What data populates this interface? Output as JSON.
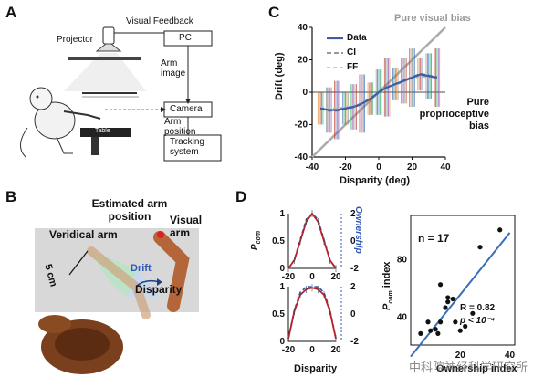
{
  "panels": {
    "a": "A",
    "b": "B",
    "c": "C",
    "d": "D"
  },
  "panel_a": {
    "visual_feedback": "Visual Feedback",
    "projector": "Projector",
    "pc": "PC",
    "arm_image": "Arm image",
    "camera": "Camera",
    "arm_position": "Arm position",
    "tracking_system": "Tracking system",
    "table": "Table"
  },
  "panel_b": {
    "estimated_arm_position": "Estimated arm position",
    "veridical_arm": "Veridical arm",
    "visual_arm": "Visual arm",
    "scale": "5 cm",
    "drift": "Drift",
    "disparity": "Disparity"
  },
  "chart_c": {
    "ylabel": "Drift (deg)",
    "xlabel": "Disparity (deg)",
    "legend": [
      "Data",
      "CI",
      "FF"
    ],
    "pure_visual_bias": "Pure visual bias",
    "pure_proprioceptive_bias": "Pure proprioceptive bias",
    "xticks": [
      "-40",
      "-20",
      "0",
      "20",
      "40"
    ],
    "yticks": [
      "40",
      "20",
      "0",
      "-20",
      "-40"
    ]
  },
  "chart_d": {
    "pcom_label": "P",
    "pcom_sub": "com",
    "ownership_label": "Ownership",
    "disparity_label": "Disparity",
    "xticks": [
      "-20",
      "0",
      "20"
    ],
    "left_yticks": [
      "1",
      "0.5",
      "0"
    ],
    "right_yticks": [
      "2",
      "0",
      "-2"
    ],
    "scatter_n": "n = 17",
    "scatter_r": "R = 0.82",
    "scatter_p": "p < 10⁻⁴",
    "scatter_ylabel_main": "index",
    "scatter_xlabel": "Ownership index",
    "scatter_xticks": [
      "20",
      "40"
    ],
    "scatter_yticks": [
      "80",
      "40"
    ]
  },
  "watermark": "中科院神经科学研究所",
  "chart_data": [
    {
      "type": "line",
      "title": "",
      "xlabel": "Disparity (deg)",
      "ylabel": "Drift (deg)",
      "xlim": [
        -40,
        40
      ],
      "ylim": [
        -40,
        40
      ],
      "series": [
        {
          "name": "Data",
          "x": [
            -35,
            -30,
            -25,
            -20,
            -15,
            -10,
            -5,
            0,
            5,
            10,
            15,
            20,
            25,
            30,
            35
          ],
          "y": [
            -10,
            -11,
            -11,
            -10,
            -9,
            -7,
            -4,
            0,
            3,
            5,
            7,
            9,
            11,
            10,
            9
          ]
        },
        {
          "name": "Pure visual bias",
          "x": [
            -40,
            40
          ],
          "y": [
            -40,
            40
          ]
        },
        {
          "name": "Pure proprioceptive bias",
          "x": [
            -40,
            40
          ],
          "y": [
            0,
            0
          ]
        }
      ]
    },
    {
      "type": "line",
      "title": "",
      "xlabel": "Disparity",
      "ylabel": "P com",
      "x": [
        -20,
        -15,
        -10,
        -5,
        0,
        5,
        10,
        15,
        20
      ],
      "series": [
        {
          "name": "",
          "values": [
            0.0,
            0.15,
            0.5,
            0.85,
            1.0,
            0.85,
            0.5,
            0.15,
            0.0
          ]
        }
      ]
    },
    {
      "type": "line",
      "title": "",
      "xlabel": "Disparity",
      "ylabel": "P com",
      "x": [
        -20,
        -15,
        -10,
        -5,
        0,
        5,
        10,
        15,
        20
      ],
      "series": [
        {
          "name": "",
          "values": [
            0.05,
            0.55,
            0.85,
            0.95,
            0.98,
            0.95,
            0.85,
            0.55,
            0.05
          ]
        }
      ]
    },
    {
      "type": "scatter",
      "title": "",
      "xlabel": "Ownership index",
      "ylabel": "P com index",
      "points": [
        {
          "x": 4,
          "y": 28
        },
        {
          "x": 7,
          "y": 36
        },
        {
          "x": 8,
          "y": 30
        },
        {
          "x": 10,
          "y": 31
        },
        {
          "x": 11,
          "y": 28
        },
        {
          "x": 12,
          "y": 36
        },
        {
          "x": 12,
          "y": 62
        },
        {
          "x": 14,
          "y": 46
        },
        {
          "x": 15,
          "y": 50
        },
        {
          "x": 15,
          "y": 53
        },
        {
          "x": 17,
          "y": 52
        },
        {
          "x": 18,
          "y": 36
        },
        {
          "x": 20,
          "y": 30
        },
        {
          "x": 22,
          "y": 33
        },
        {
          "x": 25,
          "y": 42
        },
        {
          "x": 28,
          "y": 88
        },
        {
          "x": 36,
          "y": 100
        }
      ],
      "fit": {
        "x": [
          0,
          40
        ],
        "y": [
          12,
          98
        ]
      }
    }
  ]
}
